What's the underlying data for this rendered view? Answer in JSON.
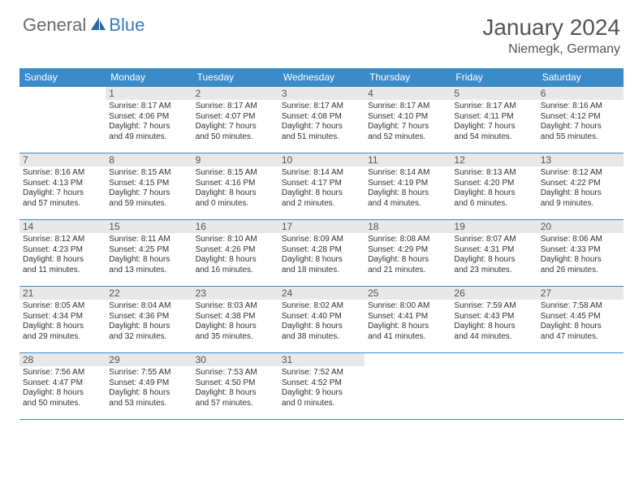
{
  "brand": {
    "left": "General",
    "right": "Blue"
  },
  "title": "January 2024",
  "location": "Niemegk, Germany",
  "colors": {
    "header_bg": "#3b8bc9",
    "header_fg": "#ffffff",
    "rule": "#3b8bc9",
    "daynum_bg": "#e8e8e8",
    "text": "#333333"
  },
  "weekdays": [
    "Sunday",
    "Monday",
    "Tuesday",
    "Wednesday",
    "Thursday",
    "Friday",
    "Saturday"
  ],
  "weeks": [
    [
      null,
      {
        "n": "1",
        "sr": "Sunrise: 8:17 AM",
        "ss": "Sunset: 4:06 PM",
        "d1": "Daylight: 7 hours",
        "d2": "and 49 minutes."
      },
      {
        "n": "2",
        "sr": "Sunrise: 8:17 AM",
        "ss": "Sunset: 4:07 PM",
        "d1": "Daylight: 7 hours",
        "d2": "and 50 minutes."
      },
      {
        "n": "3",
        "sr": "Sunrise: 8:17 AM",
        "ss": "Sunset: 4:08 PM",
        "d1": "Daylight: 7 hours",
        "d2": "and 51 minutes."
      },
      {
        "n": "4",
        "sr": "Sunrise: 8:17 AM",
        "ss": "Sunset: 4:10 PM",
        "d1": "Daylight: 7 hours",
        "d2": "and 52 minutes."
      },
      {
        "n": "5",
        "sr": "Sunrise: 8:17 AM",
        "ss": "Sunset: 4:11 PM",
        "d1": "Daylight: 7 hours",
        "d2": "and 54 minutes."
      },
      {
        "n": "6",
        "sr": "Sunrise: 8:16 AM",
        "ss": "Sunset: 4:12 PM",
        "d1": "Daylight: 7 hours",
        "d2": "and 55 minutes."
      }
    ],
    [
      {
        "n": "7",
        "sr": "Sunrise: 8:16 AM",
        "ss": "Sunset: 4:13 PM",
        "d1": "Daylight: 7 hours",
        "d2": "and 57 minutes."
      },
      {
        "n": "8",
        "sr": "Sunrise: 8:15 AM",
        "ss": "Sunset: 4:15 PM",
        "d1": "Daylight: 7 hours",
        "d2": "and 59 minutes."
      },
      {
        "n": "9",
        "sr": "Sunrise: 8:15 AM",
        "ss": "Sunset: 4:16 PM",
        "d1": "Daylight: 8 hours",
        "d2": "and 0 minutes."
      },
      {
        "n": "10",
        "sr": "Sunrise: 8:14 AM",
        "ss": "Sunset: 4:17 PM",
        "d1": "Daylight: 8 hours",
        "d2": "and 2 minutes."
      },
      {
        "n": "11",
        "sr": "Sunrise: 8:14 AM",
        "ss": "Sunset: 4:19 PM",
        "d1": "Daylight: 8 hours",
        "d2": "and 4 minutes."
      },
      {
        "n": "12",
        "sr": "Sunrise: 8:13 AM",
        "ss": "Sunset: 4:20 PM",
        "d1": "Daylight: 8 hours",
        "d2": "and 6 minutes."
      },
      {
        "n": "13",
        "sr": "Sunrise: 8:12 AM",
        "ss": "Sunset: 4:22 PM",
        "d1": "Daylight: 8 hours",
        "d2": "and 9 minutes."
      }
    ],
    [
      {
        "n": "14",
        "sr": "Sunrise: 8:12 AM",
        "ss": "Sunset: 4:23 PM",
        "d1": "Daylight: 8 hours",
        "d2": "and 11 minutes."
      },
      {
        "n": "15",
        "sr": "Sunrise: 8:11 AM",
        "ss": "Sunset: 4:25 PM",
        "d1": "Daylight: 8 hours",
        "d2": "and 13 minutes."
      },
      {
        "n": "16",
        "sr": "Sunrise: 8:10 AM",
        "ss": "Sunset: 4:26 PM",
        "d1": "Daylight: 8 hours",
        "d2": "and 16 minutes."
      },
      {
        "n": "17",
        "sr": "Sunrise: 8:09 AM",
        "ss": "Sunset: 4:28 PM",
        "d1": "Daylight: 8 hours",
        "d2": "and 18 minutes."
      },
      {
        "n": "18",
        "sr": "Sunrise: 8:08 AM",
        "ss": "Sunset: 4:29 PM",
        "d1": "Daylight: 8 hours",
        "d2": "and 21 minutes."
      },
      {
        "n": "19",
        "sr": "Sunrise: 8:07 AM",
        "ss": "Sunset: 4:31 PM",
        "d1": "Daylight: 8 hours",
        "d2": "and 23 minutes."
      },
      {
        "n": "20",
        "sr": "Sunrise: 8:06 AM",
        "ss": "Sunset: 4:33 PM",
        "d1": "Daylight: 8 hours",
        "d2": "and 26 minutes."
      }
    ],
    [
      {
        "n": "21",
        "sr": "Sunrise: 8:05 AM",
        "ss": "Sunset: 4:34 PM",
        "d1": "Daylight: 8 hours",
        "d2": "and 29 minutes."
      },
      {
        "n": "22",
        "sr": "Sunrise: 8:04 AM",
        "ss": "Sunset: 4:36 PM",
        "d1": "Daylight: 8 hours",
        "d2": "and 32 minutes."
      },
      {
        "n": "23",
        "sr": "Sunrise: 8:03 AM",
        "ss": "Sunset: 4:38 PM",
        "d1": "Daylight: 8 hours",
        "d2": "and 35 minutes."
      },
      {
        "n": "24",
        "sr": "Sunrise: 8:02 AM",
        "ss": "Sunset: 4:40 PM",
        "d1": "Daylight: 8 hours",
        "d2": "and 38 minutes."
      },
      {
        "n": "25",
        "sr": "Sunrise: 8:00 AM",
        "ss": "Sunset: 4:41 PM",
        "d1": "Daylight: 8 hours",
        "d2": "and 41 minutes."
      },
      {
        "n": "26",
        "sr": "Sunrise: 7:59 AM",
        "ss": "Sunset: 4:43 PM",
        "d1": "Daylight: 8 hours",
        "d2": "and 44 minutes."
      },
      {
        "n": "27",
        "sr": "Sunrise: 7:58 AM",
        "ss": "Sunset: 4:45 PM",
        "d1": "Daylight: 8 hours",
        "d2": "and 47 minutes."
      }
    ],
    [
      {
        "n": "28",
        "sr": "Sunrise: 7:56 AM",
        "ss": "Sunset: 4:47 PM",
        "d1": "Daylight: 8 hours",
        "d2": "and 50 minutes."
      },
      {
        "n": "29",
        "sr": "Sunrise: 7:55 AM",
        "ss": "Sunset: 4:49 PM",
        "d1": "Daylight: 8 hours",
        "d2": "and 53 minutes."
      },
      {
        "n": "30",
        "sr": "Sunrise: 7:53 AM",
        "ss": "Sunset: 4:50 PM",
        "d1": "Daylight: 8 hours",
        "d2": "and 57 minutes."
      },
      {
        "n": "31",
        "sr": "Sunrise: 7:52 AM",
        "ss": "Sunset: 4:52 PM",
        "d1": "Daylight: 9 hours",
        "d2": "and 0 minutes."
      },
      null,
      null,
      null
    ]
  ]
}
